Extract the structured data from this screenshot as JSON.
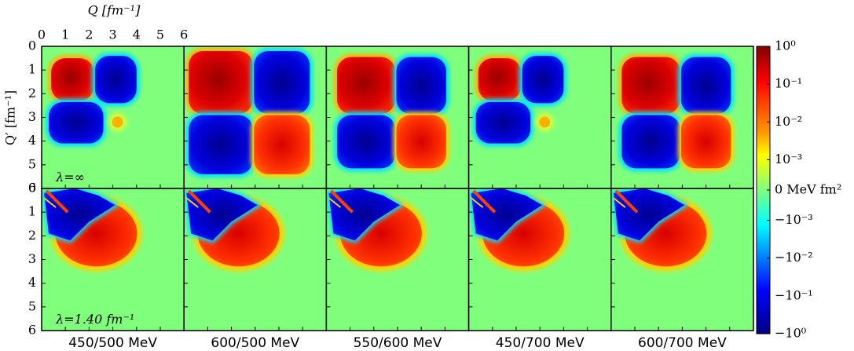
{
  "chart_data": {
    "type": "heatmap",
    "xlabel": "Q [fm⁻¹]",
    "ylabel": "Q′ [fm⁻¹]",
    "xlim": [
      0,
      6
    ],
    "ylim": [
      6,
      0
    ],
    "xticks": [
      0,
      1,
      2,
      3,
      4,
      5,
      6
    ],
    "yticks": [
      0,
      1,
      2,
      3,
      4,
      5,
      6
    ],
    "columns": [
      "450/500 MeV",
      "600/500 MeV",
      "550/600 MeV",
      "450/700 MeV",
      "600/700 MeV"
    ],
    "rows": [
      "λ=∞",
      "λ=1.40 fm⁻¹"
    ],
    "colorbar": {
      "clim": [
        -1,
        1
      ],
      "linthresh": 0.001,
      "ticks": [
        {
          "value": 1,
          "label": "10⁰"
        },
        {
          "value": 0.1,
          "label": "10⁻¹"
        },
        {
          "value": 0.01,
          "label": "10⁻²"
        },
        {
          "value": 0.001,
          "label": "10⁻³"
        },
        {
          "value": 0,
          "label": "0 MeV fm²"
        },
        {
          "value": -0.001,
          "label": "−10⁻³"
        },
        {
          "value": -0.01,
          "label": "−10⁻²"
        },
        {
          "value": -0.1,
          "label": "−10⁻¹"
        },
        {
          "value": -1,
          "label": "−10⁰"
        }
      ]
    }
  }
}
